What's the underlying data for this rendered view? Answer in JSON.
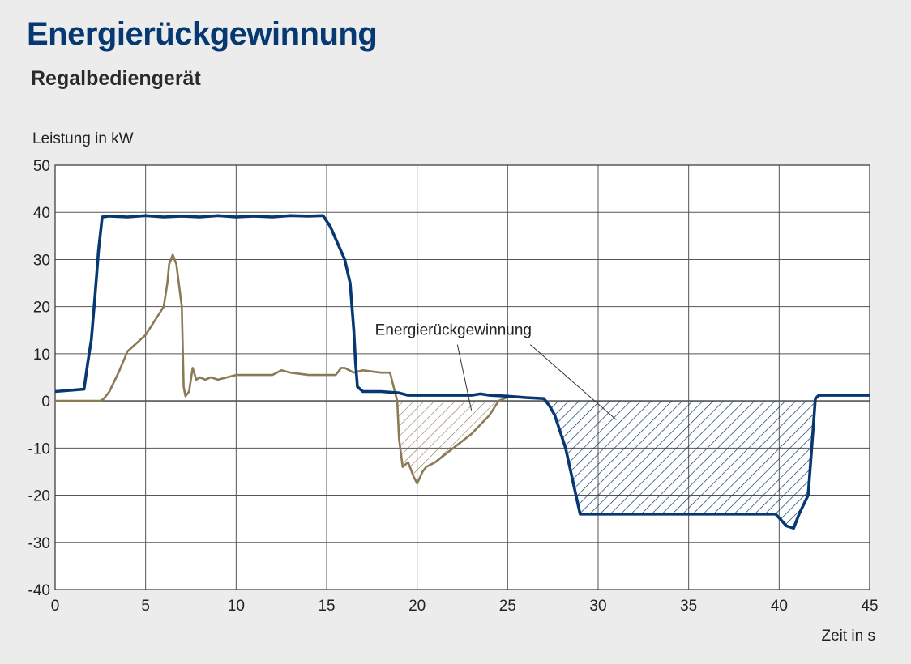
{
  "page": {
    "title": "Energierückgewinnung",
    "subtitle": "Regalbediengerät"
  },
  "colors": {
    "background": "#ececec",
    "plot_background": "#ffffff",
    "title": "#063872",
    "blue_series": "#063872",
    "brown_series": "#8a7a55",
    "grid": "#555555"
  },
  "chart_data": {
    "type": "line",
    "title": "",
    "xlabel": "Zeit in s",
    "ylabel": "Leistung in kW",
    "xlim": [
      0,
      45
    ],
    "ylim": [
      -40,
      50
    ],
    "xticks": [
      0,
      5,
      10,
      15,
      20,
      25,
      30,
      35,
      40,
      45
    ],
    "yticks": [
      50,
      40,
      30,
      20,
      10,
      0,
      -10,
      -20,
      -30,
      -40
    ],
    "grid": true,
    "legend": "none",
    "annotation": {
      "text": "Energierückgewinnung",
      "label_at": [
        22,
        14
      ],
      "pointers": [
        [
          23,
          -2
        ],
        [
          31,
          -4
        ]
      ]
    },
    "series": [
      {
        "color": "#063872",
        "hatched_negative_area": true,
        "x": [
          0,
          1.6,
          1.8,
          2.0,
          2.2,
          2.4,
          2.6,
          3.0,
          4.0,
          5.0,
          6.0,
          7.0,
          8.0,
          9.0,
          10.0,
          11.0,
          12.0,
          13.0,
          14.0,
          14.8,
          15.2,
          15.6,
          16.0,
          16.3,
          16.5,
          16.6,
          16.7,
          17.0,
          18.0,
          19.0,
          19.5,
          20.0,
          22.0,
          23.0,
          23.5,
          24.0,
          25.0,
          26.0,
          27.0,
          27.3,
          27.6,
          28.2,
          29.0,
          30.0,
          35.0,
          39.8,
          40.4,
          40.8,
          41.1,
          41.6,
          41.8,
          42.0,
          42.2,
          45.0
        ],
        "y": [
          2,
          2.5,
          8,
          13,
          22,
          32,
          39,
          39.2,
          39,
          39.3,
          39,
          39.2,
          39,
          39.3,
          39,
          39.2,
          39,
          39.3,
          39.2,
          39.3,
          37,
          33.5,
          30,
          25,
          15,
          8,
          3,
          2,
          2,
          1.7,
          1.2,
          1.2,
          1.2,
          1.2,
          1.5,
          1.2,
          1,
          0.7,
          0.5,
          -1,
          -3,
          -10,
          -24,
          -24,
          -24,
          -24,
          -26.5,
          -27,
          -24,
          -20,
          -10,
          0.5,
          1.2,
          1.2
        ]
      },
      {
        "color": "#8a7a55",
        "hatched_negative_area": true,
        "x": [
          0,
          2.5,
          2.7,
          3.0,
          3.5,
          4.0,
          5.0,
          6.0,
          6.2,
          6.3,
          6.5,
          6.7,
          7.0,
          7.1,
          7.2,
          7.4,
          7.6,
          7.8,
          8.0,
          8.3,
          8.6,
          9.0,
          10.0,
          11.0,
          12.0,
          12.5,
          13.0,
          14.0,
          15.0,
          15.5,
          15.8,
          16.0,
          16.5,
          17.0,
          18.0,
          18.5,
          18.7,
          18.9,
          19.0,
          19.2,
          19.5,
          19.8,
          20.0,
          20.3,
          20.5,
          21.0,
          22.0,
          23.0,
          24.0,
          24.5,
          25.0
        ],
        "y": [
          0,
          0,
          0.5,
          2,
          6,
          10.5,
          14,
          20,
          25,
          29,
          31,
          29,
          20,
          3,
          1,
          2,
          7,
          4.5,
          5,
          4.5,
          5,
          4.5,
          5.5,
          5.5,
          5.5,
          6.5,
          6,
          5.5,
          5.5,
          5.5,
          7,
          7,
          6,
          6.5,
          6,
          6,
          3,
          0,
          -8,
          -14,
          -13,
          -16,
          -17.5,
          -15,
          -14,
          -13,
          -10,
          -7,
          -3,
          0,
          0.8
        ]
      }
    ]
  }
}
